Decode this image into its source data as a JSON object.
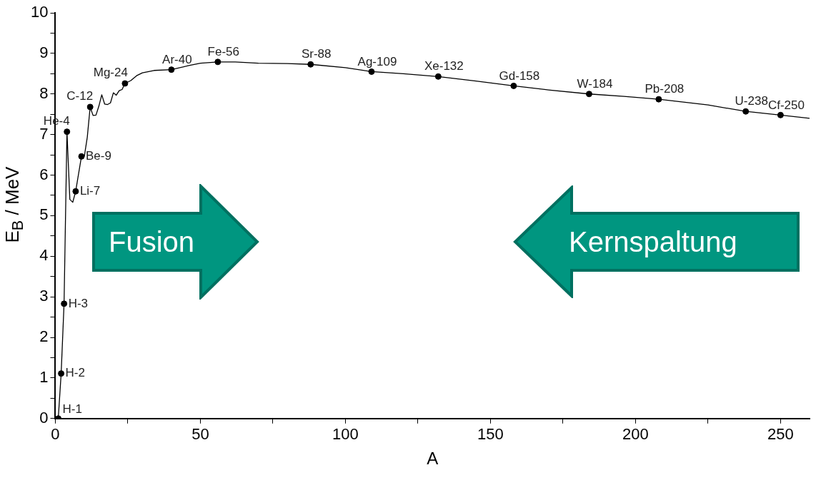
{
  "chart_data": {
    "type": "line",
    "xlabel": "A",
    "ylabel": "E$_{B}$ / MeV",
    "xlim": [
      0,
      260
    ],
    "xticks": [
      0,
      {
        "value": 25,
        "label": null
      },
      50,
      {
        "value": 75,
        "label": null
      },
      100,
      {
        "value": 125,
        "label": null
      },
      150,
      {
        "value": 175,
        "label": null
      },
      200,
      {
        "value": 225,
        "label": null
      },
      250
    ],
    "ylim": [
      0,
      10
    ],
    "yticks": [
      0,
      {
        "value": 0.5,
        "label": null
      },
      1,
      {
        "value": 1.5,
        "label": null
      },
      2,
      {
        "value": 2.5,
        "label": null
      },
      3,
      {
        "value": 3.5,
        "label": null
      },
      4,
      {
        "value": 4.5,
        "label": null
      },
      5,
      {
        "value": 5.5,
        "label": null
      },
      6,
      {
        "value": 6.5,
        "label": null
      },
      7,
      {
        "value": 7.5,
        "label": null
      },
      8,
      {
        "value": 8.5,
        "label": null
      },
      9,
      {
        "value": 9.5,
        "label": null
      },
      10
    ],
    "grid": false,
    "legend": false,
    "series": [
      {
        "color": "#000000",
        "marker": "none",
        "line_style": "solid",
        "x": [
          1,
          2,
          3,
          4,
          5,
          6,
          7,
          9,
          10,
          11,
          12,
          13,
          14,
          15,
          16,
          17,
          18,
          19,
          20,
          21,
          22,
          23,
          24,
          26,
          28,
          30,
          34,
          40,
          46,
          50,
          56,
          62,
          70,
          80,
          88,
          100,
          109,
          120,
          132,
          145,
          158,
          170,
          184,
          196,
          208,
          225,
          238,
          250,
          260
        ],
        "values": [
          0,
          1.11,
          2.83,
          7.07,
          5.4,
          5.33,
          5.6,
          6.46,
          6.47,
          6.93,
          7.68,
          7.47,
          7.48,
          7.7,
          7.98,
          7.75,
          7.74,
          7.78,
          8.03,
          7.97,
          8.08,
          8.11,
          8.26,
          8.33,
          8.45,
          8.52,
          8.58,
          8.6,
          8.7,
          8.76,
          8.79,
          8.79,
          8.76,
          8.75,
          8.73,
          8.65,
          8.55,
          8.5,
          8.43,
          8.32,
          8.2,
          8.1,
          8.0,
          7.94,
          7.87,
          7.73,
          7.57,
          7.48,
          7.4
        ]
      },
      {
        "type": "scatter",
        "color": "#000000",
        "marker": "circle",
        "x": [
          1,
          2,
          3,
          4,
          7,
          9,
          12,
          24,
          40,
          56,
          88,
          109,
          132,
          158,
          184,
          208,
          238,
          250
        ],
        "values": [
          0,
          1.11,
          2.83,
          7.07,
          5.6,
          6.46,
          7.68,
          8.26,
          8.6,
          8.79,
          8.73,
          8.55,
          8.43,
          8.2,
          8.0,
          7.87,
          7.57,
          7.48
        ]
      }
    ],
    "annotations": [
      {
        "text": "H-1",
        "x": 1,
        "y": 0
      },
      {
        "text": "H-2",
        "x": 2,
        "y": 1.11
      },
      {
        "text": "H-3",
        "x": 3,
        "y": 2.83
      },
      {
        "text": "He-4",
        "x": 4,
        "y": 7.07
      },
      {
        "text": "Li-7",
        "x": 7,
        "y": 5.6
      },
      {
        "text": "Be-9",
        "x": 9,
        "y": 6.46
      },
      {
        "text": "C-12",
        "x": 12,
        "y": 7.68
      },
      {
        "text": "Mg-24",
        "x": 24,
        "y": 8.26
      },
      {
        "text": "Ar-40",
        "x": 40,
        "y": 8.6
      },
      {
        "text": "Fe-56",
        "x": 56,
        "y": 8.79
      },
      {
        "text": "Sr-88",
        "x": 88,
        "y": 8.73
      },
      {
        "text": "Ag-109",
        "x": 109,
        "y": 8.55
      },
      {
        "text": "Xe-132",
        "x": 132,
        "y": 8.43
      },
      {
        "text": "Gd-158",
        "x": 158,
        "y": 8.2
      },
      {
        "text": "W-184",
        "x": 184,
        "y": 8.0
      },
      {
        "text": "Pb-208",
        "x": 208,
        "y": 7.87
      },
      {
        "text": "U-238",
        "x": 238,
        "y": 7.57
      },
      {
        "text": "Cf-250",
        "x": 250,
        "y": 7.48
      },
      "Fusion",
      "Kernspaltung"
    ]
  }
}
